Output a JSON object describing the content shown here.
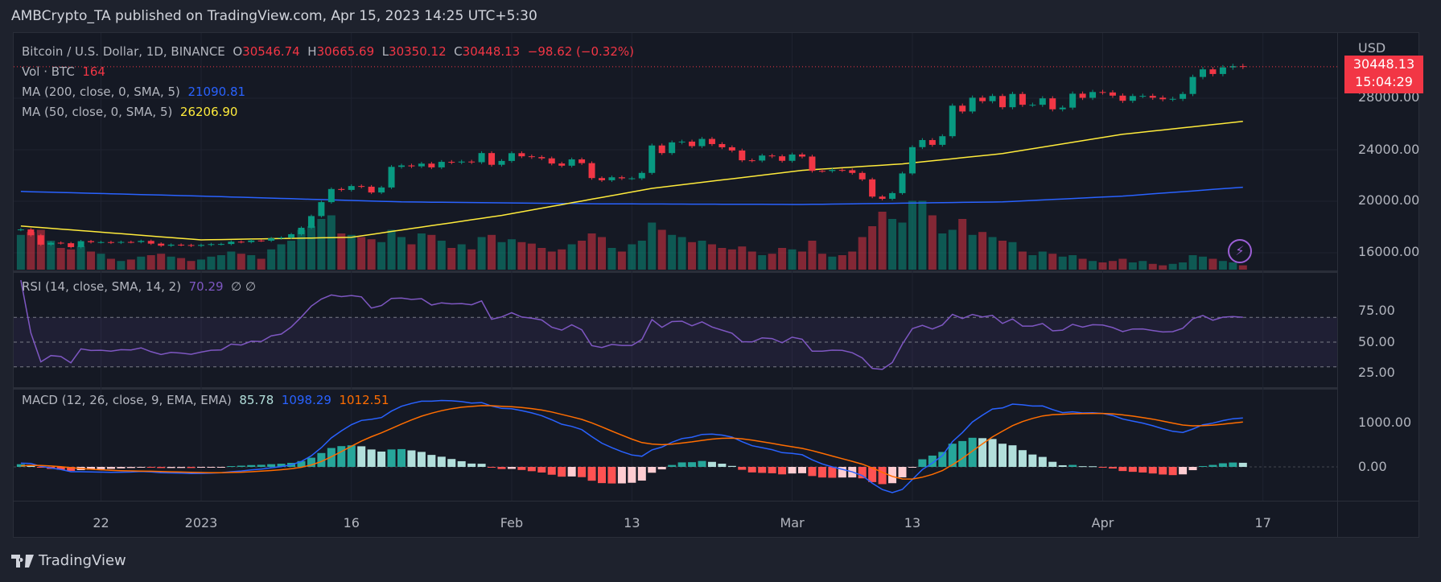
{
  "header": {
    "published": "AMBCrypto_TA published on TradingView.com, Apr 15, 2023 14:25 UTC+5:30"
  },
  "legend": {
    "symbol": "Bitcoin / U.S. Dollar, 1D, BINANCE",
    "o_label": "O",
    "o": "30546.74",
    "h_label": "H",
    "h": "30665.69",
    "l_label": "L",
    "l": "30350.12",
    "c_label": "C",
    "c": "30448.13",
    "change": "−98.62 (−0.32%)",
    "vol_label": "Vol · BTC",
    "vol": "164",
    "ma200_label": "MA (200, close, 0, SMA, 5)",
    "ma200": "21090.81",
    "ma50_label": "MA (50, close, 0, SMA, 5)",
    "ma50": "26206.90",
    "rsi_label": "RSI (14, close, SMA, 14, 2)",
    "rsi": "70.29",
    "rsi_extra": "∅  ∅",
    "macd_label": "MACD (12, 26, close, 9, EMA, EMA)",
    "macd_hist": "85.78",
    "macd": "1098.29",
    "macd_signal": "1012.51"
  },
  "price_axis": {
    "currency": "USD",
    "last_price": "30448.13",
    "countdown": "15:04:29",
    "ticks": [
      "28000.00",
      "24000.00",
      "20000.00",
      "16000.00"
    ],
    "tick_values": [
      28000,
      24000,
      20000,
      16000
    ]
  },
  "rsi_axis": {
    "ticks": [
      "75.00",
      "50.00",
      "25.00"
    ],
    "tick_values": [
      75,
      50,
      25
    ]
  },
  "macd_axis": {
    "ticks": [
      "1000.00",
      "0.00"
    ],
    "tick_values": [
      1000,
      0
    ]
  },
  "time_axis": [
    {
      "label": "22",
      "day": 10
    },
    {
      "label": "2023",
      "day": 20
    },
    {
      "label": "16",
      "day": 35
    },
    {
      "label": "Feb",
      "day": 51
    },
    {
      "label": "13",
      "day": 63
    },
    {
      "label": "Mar",
      "day": 79
    },
    {
      "label": "13",
      "day": 91
    },
    {
      "label": "Apr",
      "day": 110
    },
    {
      "label": "17",
      "day": 126
    }
  ],
  "footer": {
    "brand": "TradingView"
  },
  "colors": {
    "up": "#089981",
    "down": "#f23645",
    "ma200": "#2962ff",
    "ma50": "#ffeb3b",
    "rsi": "#7e57c2",
    "macd": "#2962ff",
    "signal": "#ff6d00"
  },
  "chart_data": {
    "type": "candlestick",
    "title": "Bitcoin / U.S. Dollar, 1D, BINANCE",
    "start_date": "2022-12-12",
    "closes": [
      17200,
      17780,
      17810,
      17360,
      16630,
      16780,
      16740,
      16440,
      16900,
      16820,
      16830,
      16780,
      16840,
      16830,
      16920,
      16710,
      16550,
      16630,
      16600,
      16540,
      16610,
      16670,
      16680,
      16860,
      16830,
      16950,
      16940,
      17120,
      17180,
      17440,
      17940,
      18850,
      19930,
      20950,
      20880,
      21180,
      21130,
      20680,
      21070,
      22670,
      22780,
      22710,
      22920,
      22630,
      23060,
      23010,
      23080,
      23030,
      23740,
      22830,
      23130,
      23730,
      23490,
      23430,
      23330,
      22930,
      22760,
      23250,
      22960,
      21800,
      21630,
      21860,
      21780,
      21780,
      22200,
      24330,
      23740,
      24570,
      24630,
      24280,
      24840,
      24440,
      24190,
      23940,
      23180,
      23160,
      23550,
      23490,
      23140,
      23630,
      23470,
      22360,
      22350,
      22430,
      22410,
      22200,
      21700,
      20360,
      20190,
      20630,
      22160,
      24200,
      24750,
      24380,
      25050,
      27420,
      26970,
      28040,
      27770,
      28170,
      27300,
      28330,
      27490,
      27490,
      27990,
      27140,
      27270,
      28350,
      28030,
      28480,
      28450,
      28200,
      27800,
      28170,
      28180,
      28040,
      27920,
      27950,
      28330,
      29650,
      30240,
      29880,
      30390,
      30490,
      30448
    ],
    "volumes": [
      45,
      50,
      48,
      52,
      55,
      40,
      30,
      28,
      32,
      25,
      22,
      15,
      12,
      14,
      18,
      20,
      22,
      18,
      16,
      12,
      14,
      18,
      20,
      25,
      22,
      20,
      15,
      28,
      35,
      40,
      55,
      60,
      70,
      75,
      50,
      48,
      45,
      42,
      38,
      55,
      45,
      35,
      50,
      48,
      40,
      30,
      35,
      28,
      45,
      48,
      38,
      42,
      38,
      36,
      30,
      25,
      28,
      35,
      40,
      50,
      45,
      30,
      25,
      35,
      40,
      65,
      55,
      48,
      45,
      38,
      40,
      35,
      30,
      28,
      32,
      25,
      20,
      22,
      30,
      28,
      25,
      40,
      22,
      18,
      20,
      25,
      45,
      60,
      80,
      70,
      65,
      95,
      95,
      75,
      50,
      55,
      70,
      48,
      52,
      45,
      40,
      38,
      25,
      20,
      25,
      22,
      18,
      20,
      15,
      12,
      10,
      12,
      15,
      10,
      12,
      8,
      6,
      8,
      10,
      20,
      18,
      15,
      12,
      10,
      6
    ],
    "ma200_points": [
      [
        0,
        20800
      ],
      [
        20,
        20400
      ],
      [
        40,
        19950
      ],
      [
        60,
        19800
      ],
      [
        80,
        19750
      ],
      [
        100,
        19950
      ],
      [
        112,
        20400
      ],
      [
        124,
        21090
      ]
    ],
    "ma50_points": [
      [
        0,
        18200
      ],
      [
        10,
        17600
      ],
      [
        20,
        17000
      ],
      [
        35,
        17200
      ],
      [
        50,
        18900
      ],
      [
        65,
        21000
      ],
      [
        80,
        22400
      ],
      [
        90,
        22900
      ],
      [
        100,
        23700
      ],
      [
        112,
        25200
      ],
      [
        124,
        26200
      ]
    ],
    "ylim": [
      15000,
      31500
    ]
  }
}
